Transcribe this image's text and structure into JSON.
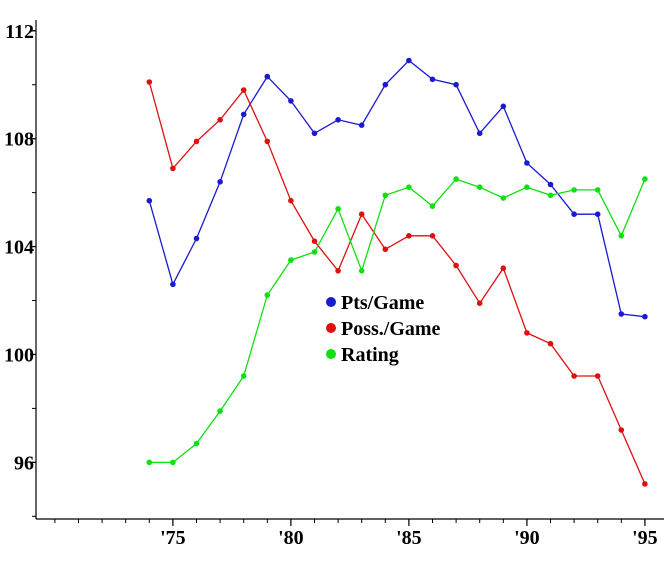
{
  "chart_data": {
    "type": "line",
    "x": [
      1974,
      1975,
      1976,
      1977,
      1978,
      1979,
      1980,
      1981,
      1982,
      1983,
      1984,
      1985,
      1986,
      1987,
      1988,
      1989,
      1990,
      1991,
      1992,
      1993,
      1994,
      1995
    ],
    "xlim": [
      1969.2,
      1995.3
    ],
    "ylim": [
      93.9,
      112.4
    ],
    "x_ticks": [
      1975,
      1980,
      1985,
      1990,
      1995
    ],
    "x_tick_labels": [
      "'75",
      "'80",
      "'85",
      "'90",
      "'95"
    ],
    "y_ticks": [
      96,
      100,
      104,
      108,
      112
    ],
    "y_tick_labels": [
      "96",
      "100",
      "104",
      "108",
      "112"
    ],
    "grid": false,
    "legend_position": "center",
    "series": [
      {
        "name": "Pts/Game",
        "color": "#1a1ad0",
        "values": [
          105.7,
          102.6,
          104.3,
          106.4,
          108.9,
          110.3,
          109.4,
          108.2,
          108.7,
          108.5,
          110.0,
          110.9,
          110.2,
          110.0,
          108.2,
          109.2,
          107.1,
          106.3,
          105.2,
          105.2,
          101.5,
          101.4
        ]
      },
      {
        "name": "Poss./Game",
        "color": "#e01010",
        "values": [
          110.1,
          106.9,
          107.9,
          108.7,
          109.8,
          107.9,
          105.7,
          104.2,
          103.1,
          105.2,
          103.9,
          104.4,
          104.4,
          103.3,
          101.9,
          103.2,
          100.8,
          100.4,
          99.2,
          99.2,
          97.2,
          95.2
        ]
      },
      {
        "name": "Rating",
        "color": "#10e010",
        "values": [
          96.0,
          96.0,
          96.7,
          97.9,
          99.2,
          102.2,
          103.5,
          103.8,
          105.4,
          103.1,
          105.9,
          106.2,
          105.5,
          106.5,
          106.2,
          105.8,
          106.2,
          105.9,
          106.1,
          106.1,
          104.4,
          106.5
        ]
      }
    ]
  }
}
